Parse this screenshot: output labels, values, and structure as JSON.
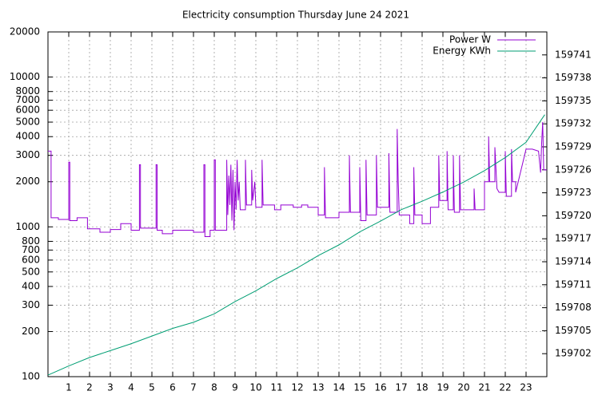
{
  "chart_data": {
    "type": "line",
    "title": "Electricity consumption Thursday June 24 2021",
    "xlim": [
      0,
      24
    ],
    "xticks": [
      1,
      2,
      3,
      4,
      5,
      6,
      7,
      8,
      9,
      10,
      11,
      12,
      13,
      14,
      15,
      16,
      17,
      18,
      19,
      20,
      21,
      22,
      23
    ],
    "ylim": [
      100,
      20000
    ],
    "ylog": true,
    "yticks": [
      100,
      200,
      300,
      400,
      500,
      600,
      700,
      800,
      1000,
      2000,
      3000,
      4000,
      5000,
      6000,
      7000,
      8000,
      10000,
      20000
    ],
    "y2lim": [
      159699,
      159744
    ],
    "y2ticks": [
      159702,
      159705,
      159708,
      159711,
      159714,
      159717,
      159720,
      159723,
      159726,
      159729,
      159732,
      159735,
      159738,
      159741
    ],
    "grid": true,
    "legend": "top-right",
    "series": [
      {
        "name": "Power W",
        "color": "#9400d3",
        "x": [
          0,
          0.15,
          0.15,
          0.5,
          0.5,
          1.0,
          1.0,
          1.05,
          1.05,
          1.4,
          1.4,
          1.9,
          1.9,
          2.5,
          2.5,
          3.0,
          3.0,
          3.5,
          3.5,
          4.0,
          4.0,
          4.4,
          4.4,
          4.45,
          4.45,
          5.2,
          5.2,
          5.25,
          5.25,
          5.5,
          5.5,
          6.0,
          6.0,
          7.0,
          7.0,
          7.5,
          7.5,
          7.55,
          7.55,
          7.8,
          7.8,
          8.0,
          8.0,
          8.05,
          8.05,
          8.6,
          8.6,
          8.65,
          8.7,
          8.75,
          8.8,
          8.85,
          8.9,
          8.95,
          9.0,
          9.05,
          9.1,
          9.15,
          9.2,
          9.25,
          9.5,
          9.5,
          9.55,
          9.8,
          9.8,
          9.85,
          9.95,
          10.0,
          10.3,
          10.3,
          10.35,
          10.9,
          10.9,
          11.2,
          11.2,
          11.8,
          11.8,
          12.2,
          12.2,
          12.5,
          12.5,
          13.0,
          13.0,
          13.3,
          13.3,
          13.35,
          14.0,
          14.0,
          14.5,
          14.5,
          14.55,
          15.0,
          15.0,
          15.05,
          15.3,
          15.3,
          15.35,
          15.8,
          15.8,
          15.85,
          16.4,
          16.4,
          16.45,
          16.8,
          16.8,
          16.85,
          16.9,
          17.4,
          17.4,
          17.6,
          17.6,
          17.65,
          18.0,
          18.0,
          18.4,
          18.4,
          18.8,
          18.8,
          18.85,
          19.2,
          19.2,
          19.25,
          19.5,
          19.5,
          19.55,
          19.8,
          19.8,
          19.85,
          20.5,
          20.5,
          20.55,
          21.0,
          21.0,
          21.2,
          21.2,
          21.25,
          21.5,
          21.5,
          21.6,
          21.7,
          22.0,
          22.0,
          22.05,
          22.3,
          22.3,
          22.35,
          22.5,
          22.5,
          23.0,
          23.3,
          23.6,
          23.7,
          23.75,
          23.8,
          23.85,
          24
        ],
        "values": [
          3200,
          3200,
          1150,
          1150,
          1120,
          1120,
          2700,
          2700,
          1100,
          1100,
          1150,
          1150,
          970,
          970,
          920,
          920,
          960,
          960,
          1050,
          1050,
          950,
          950,
          2600,
          2600,
          980,
          980,
          2600,
          2600,
          950,
          950,
          900,
          900,
          950,
          950,
          920,
          920,
          2600,
          2600,
          860,
          860,
          950,
          950,
          2800,
          2800,
          950,
          950,
          2800,
          1200,
          2200,
          1400,
          2600,
          1100,
          2400,
          950,
          2000,
          1300,
          2800,
          1500,
          2000,
          1300,
          1300,
          2800,
          1400,
          1400,
          2400,
          1500,
          2000,
          1350,
          1350,
          2800,
          1400,
          1400,
          1300,
          1300,
          1400,
          1400,
          1350,
          1350,
          1400,
          1400,
          1350,
          1350,
          1200,
          1200,
          2500,
          1150,
          1150,
          1250,
          1250,
          3000,
          1250,
          1250,
          2500,
          1100,
          1100,
          2800,
          1200,
          1200,
          3000,
          1350,
          1350,
          3100,
          1250,
          1250,
          4500,
          2000,
          1200,
          1200,
          1050,
          1050,
          2500,
          1200,
          1200,
          1050,
          1050,
          1350,
          1350,
          3000,
          1500,
          1500,
          3200,
          1300,
          1300,
          3000,
          1250,
          1250,
          3000,
          1300,
          1300,
          1800,
          1300,
          1300,
          2000,
          2000,
          4000,
          2000,
          2000,
          3400,
          1800,
          1700,
          1700,
          3200,
          1600,
          1600,
          3300,
          2000,
          2000,
          1700,
          3300,
          3300,
          3200,
          2300,
          3600,
          5000,
          2400,
          2400
        ]
      },
      {
        "name": "Energy KWh",
        "color": "#009e73",
        "axis": "y2",
        "x": [
          0,
          1,
          2,
          3,
          4,
          5,
          6,
          7,
          8,
          9,
          10,
          11,
          12,
          13,
          14,
          15,
          16,
          17,
          18,
          19,
          20,
          21,
          22,
          23,
          23.9
        ],
        "values": [
          159699.2,
          159700.4,
          159701.5,
          159702.4,
          159703.3,
          159704.3,
          159705.3,
          159706.1,
          159707.2,
          159708.8,
          159710.2,
          159711.8,
          159713.2,
          159714.8,
          159716.2,
          159717.9,
          159719.3,
          159720.8,
          159721.9,
          159723.1,
          159724.4,
          159725.9,
          159727.6,
          159729.6,
          159733.2
        ]
      }
    ]
  }
}
